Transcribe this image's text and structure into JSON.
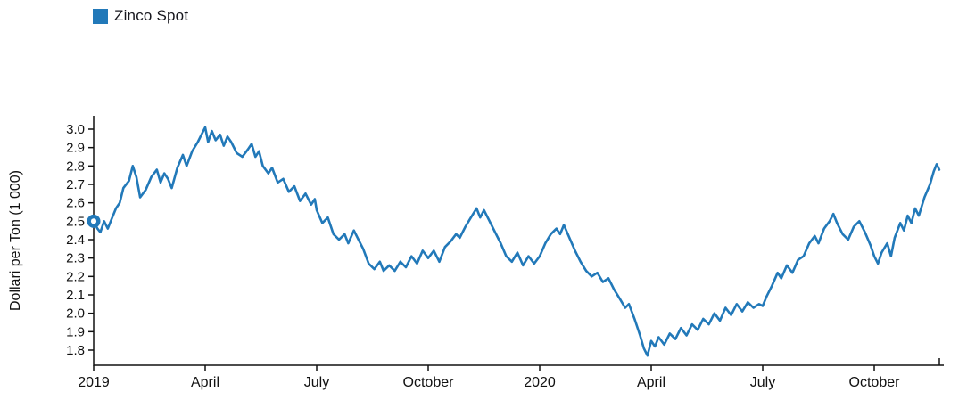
{
  "legend": {
    "label": "Zinco Spot",
    "swatch_color": "#2279b9"
  },
  "y_axis": {
    "title": "Dollari per Ton (1 000)"
  },
  "chart_data": {
    "type": "line",
    "title": "",
    "xlabel": "",
    "ylabel": "Dollari per Ton (1 000)",
    "ylim": [
      1.8,
      3.0
    ],
    "grid": false,
    "legend_position": "top-left",
    "axis_color": "#111111",
    "text_color": "#111111",
    "y_ticks": [
      3.0,
      2.9,
      2.8,
      2.7,
      2.6,
      2.5,
      2.4,
      2.3,
      2.2,
      2.1,
      2.0,
      1.9,
      1.8
    ],
    "x_unit": "months since 2019-01",
    "x_ticks": [
      {
        "m": 0,
        "label": "2019"
      },
      {
        "m": 3,
        "label": "April"
      },
      {
        "m": 6,
        "label": "July"
      },
      {
        "m": 9,
        "label": "October"
      },
      {
        "m": 12,
        "label": "2020"
      },
      {
        "m": 15,
        "label": "April"
      },
      {
        "m": 18,
        "label": "July"
      },
      {
        "m": 21,
        "label": "October"
      }
    ],
    "series": [
      {
        "name": "Zinco Spot",
        "color": "#2279b9",
        "first_point_highlighted": true,
        "points": [
          [
            0,
            2.5
          ],
          [
            0.1,
            2.46
          ],
          [
            0.18,
            2.44
          ],
          [
            0.28,
            2.5
          ],
          [
            0.38,
            2.46
          ],
          [
            0.5,
            2.52
          ],
          [
            0.6,
            2.57
          ],
          [
            0.7,
            2.6
          ],
          [
            0.8,
            2.68
          ],
          [
            0.95,
            2.72
          ],
          [
            1.05,
            2.8
          ],
          [
            1.15,
            2.74
          ],
          [
            1.25,
            2.63
          ],
          [
            1.4,
            2.67
          ],
          [
            1.55,
            2.74
          ],
          [
            1.7,
            2.78
          ],
          [
            1.8,
            2.71
          ],
          [
            1.9,
            2.76
          ],
          [
            2,
            2.73
          ],
          [
            2.1,
            2.68
          ],
          [
            2.25,
            2.79
          ],
          [
            2.4,
            2.86
          ],
          [
            2.5,
            2.8
          ],
          [
            2.65,
            2.88
          ],
          [
            2.8,
            2.93
          ],
          [
            2.95,
            2.99
          ],
          [
            3,
            3.01
          ],
          [
            3.08,
            2.93
          ],
          [
            3.18,
            2.99
          ],
          [
            3.28,
            2.94
          ],
          [
            3.4,
            2.97
          ],
          [
            3.5,
            2.91
          ],
          [
            3.6,
            2.96
          ],
          [
            3.7,
            2.93
          ],
          [
            3.85,
            2.87
          ],
          [
            4,
            2.85
          ],
          [
            4.15,
            2.89
          ],
          [
            4.25,
            2.92
          ],
          [
            4.35,
            2.85
          ],
          [
            4.45,
            2.88
          ],
          [
            4.55,
            2.8
          ],
          [
            4.7,
            2.76
          ],
          [
            4.8,
            2.79
          ],
          [
            4.95,
            2.71
          ],
          [
            5.1,
            2.73
          ],
          [
            5.25,
            2.66
          ],
          [
            5.4,
            2.69
          ],
          [
            5.55,
            2.61
          ],
          [
            5.7,
            2.65
          ],
          [
            5.85,
            2.59
          ],
          [
            5.95,
            2.62
          ],
          [
            6,
            2.56
          ],
          [
            6.15,
            2.49
          ],
          [
            6.3,
            2.52
          ],
          [
            6.45,
            2.43
          ],
          [
            6.6,
            2.4
          ],
          [
            6.75,
            2.43
          ],
          [
            6.85,
            2.38
          ],
          [
            7,
            2.45
          ],
          [
            7.1,
            2.41
          ],
          [
            7.25,
            2.35
          ],
          [
            7.4,
            2.27
          ],
          [
            7.55,
            2.24
          ],
          [
            7.7,
            2.28
          ],
          [
            7.8,
            2.23
          ],
          [
            7.95,
            2.26
          ],
          [
            8.1,
            2.23
          ],
          [
            8.25,
            2.28
          ],
          [
            8.4,
            2.25
          ],
          [
            8.55,
            2.31
          ],
          [
            8.7,
            2.27
          ],
          [
            8.85,
            2.34
          ],
          [
            9,
            2.3
          ],
          [
            9.15,
            2.34
          ],
          [
            9.3,
            2.28
          ],
          [
            9.45,
            2.36
          ],
          [
            9.6,
            2.39
          ],
          [
            9.75,
            2.43
          ],
          [
            9.85,
            2.41
          ],
          [
            10,
            2.47
          ],
          [
            10.15,
            2.52
          ],
          [
            10.3,
            2.57
          ],
          [
            10.4,
            2.52
          ],
          [
            10.5,
            2.56
          ],
          [
            10.65,
            2.5
          ],
          [
            10.8,
            2.44
          ],
          [
            10.95,
            2.38
          ],
          [
            11.1,
            2.31
          ],
          [
            11.25,
            2.28
          ],
          [
            11.4,
            2.33
          ],
          [
            11.55,
            2.26
          ],
          [
            11.7,
            2.31
          ],
          [
            11.85,
            2.27
          ],
          [
            12,
            2.31
          ],
          [
            12.15,
            2.38
          ],
          [
            12.3,
            2.43
          ],
          [
            12.45,
            2.46
          ],
          [
            12.55,
            2.43
          ],
          [
            12.65,
            2.48
          ],
          [
            12.8,
            2.41
          ],
          [
            12.95,
            2.34
          ],
          [
            13.1,
            2.28
          ],
          [
            13.25,
            2.23
          ],
          [
            13.4,
            2.2
          ],
          [
            13.55,
            2.22
          ],
          [
            13.7,
            2.17
          ],
          [
            13.85,
            2.19
          ],
          [
            14,
            2.13
          ],
          [
            14.15,
            2.08
          ],
          [
            14.3,
            2.03
          ],
          [
            14.4,
            2.05
          ],
          [
            14.55,
            1.97
          ],
          [
            14.7,
            1.88
          ],
          [
            14.8,
            1.81
          ],
          [
            14.9,
            1.77
          ],
          [
            15,
            1.85
          ],
          [
            15.1,
            1.82
          ],
          [
            15.2,
            1.87
          ],
          [
            15.35,
            1.83
          ],
          [
            15.5,
            1.89
          ],
          [
            15.65,
            1.86
          ],
          [
            15.8,
            1.92
          ],
          [
            15.95,
            1.88
          ],
          [
            16.1,
            1.94
          ],
          [
            16.25,
            1.91
          ],
          [
            16.4,
            1.97
          ],
          [
            16.55,
            1.94
          ],
          [
            16.7,
            2
          ],
          [
            16.85,
            1.96
          ],
          [
            17,
            2.03
          ],
          [
            17.15,
            1.99
          ],
          [
            17.3,
            2.05
          ],
          [
            17.45,
            2.01
          ],
          [
            17.6,
            2.06
          ],
          [
            17.75,
            2.03
          ],
          [
            17.9,
            2.05
          ],
          [
            18,
            2.04
          ],
          [
            18.1,
            2.09
          ],
          [
            18.25,
            2.15
          ],
          [
            18.4,
            2.22
          ],
          [
            18.5,
            2.19
          ],
          [
            18.65,
            2.26
          ],
          [
            18.8,
            2.22
          ],
          [
            18.95,
            2.29
          ],
          [
            19.1,
            2.31
          ],
          [
            19.25,
            2.38
          ],
          [
            19.4,
            2.42
          ],
          [
            19.5,
            2.38
          ],
          [
            19.65,
            2.46
          ],
          [
            19.8,
            2.5
          ],
          [
            19.9,
            2.54
          ],
          [
            20,
            2.49
          ],
          [
            20.15,
            2.43
          ],
          [
            20.3,
            2.4
          ],
          [
            20.45,
            2.47
          ],
          [
            20.6,
            2.5
          ],
          [
            20.75,
            2.44
          ],
          [
            20.9,
            2.37
          ],
          [
            21,
            2.31
          ],
          [
            21.1,
            2.27
          ],
          [
            21.2,
            2.33
          ],
          [
            21.35,
            2.38
          ],
          [
            21.45,
            2.31
          ],
          [
            21.55,
            2.41
          ],
          [
            21.7,
            2.49
          ],
          [
            21.8,
            2.45
          ],
          [
            21.9,
            2.53
          ],
          [
            22,
            2.49
          ],
          [
            22.1,
            2.57
          ],
          [
            22.2,
            2.53
          ],
          [
            22.35,
            2.63
          ],
          [
            22.5,
            2.7
          ],
          [
            22.6,
            2.77
          ],
          [
            22.68,
            2.81
          ],
          [
            22.75,
            2.78
          ]
        ]
      }
    ]
  }
}
